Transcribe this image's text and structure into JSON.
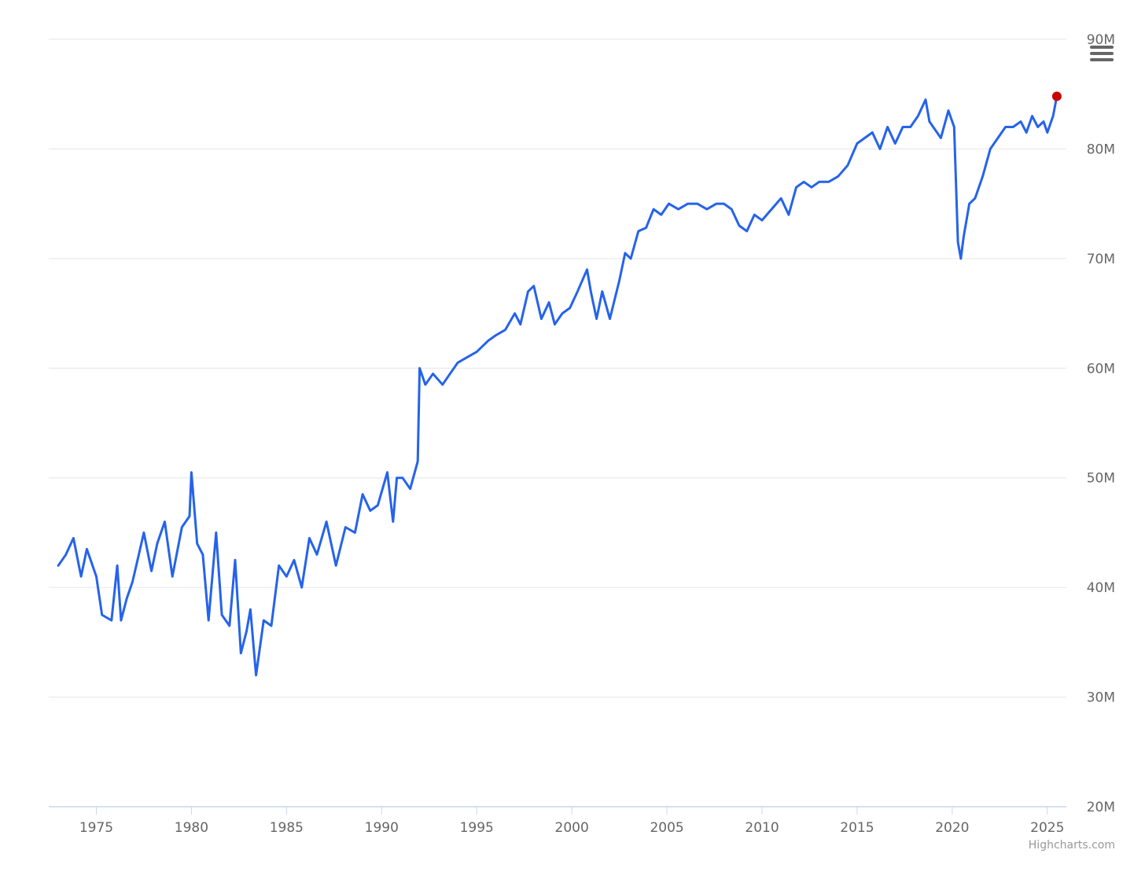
{
  "menu": {
    "icon": "hamburger-menu-icon"
  },
  "credit": "Highcharts.com",
  "colors": {
    "line": "#2563eb",
    "last_point": "#cc0000",
    "grid": "#e6e6e6",
    "axis": "#ccd6eb",
    "text": "#666666"
  },
  "chart_data": {
    "type": "line",
    "title": "",
    "xlabel": "",
    "ylabel": "",
    "xlim": [
      1972.5,
      2026
    ],
    "ylim": [
      20000000,
      90000000
    ],
    "grid": true,
    "legend": "none",
    "y_axis_side": "right",
    "x_ticks": [
      {
        "value": 1975,
        "label": "1975"
      },
      {
        "value": 1980,
        "label": "1980"
      },
      {
        "value": 1985,
        "label": "1985"
      },
      {
        "value": 1990,
        "label": "1990"
      },
      {
        "value": 1995,
        "label": "1995"
      },
      {
        "value": 2000,
        "label": "2000"
      },
      {
        "value": 2005,
        "label": "2005"
      },
      {
        "value": 2010,
        "label": "2010"
      },
      {
        "value": 2015,
        "label": "2015"
      },
      {
        "value": 2020,
        "label": "2020"
      },
      {
        "value": 2025,
        "label": "2025"
      }
    ],
    "y_ticks": [
      {
        "value": 20000000,
        "label": "20M"
      },
      {
        "value": 30000000,
        "label": "30M"
      },
      {
        "value": 40000000,
        "label": "40M"
      },
      {
        "value": 50000000,
        "label": "50M"
      },
      {
        "value": 60000000,
        "label": "60M"
      },
      {
        "value": 70000000,
        "label": "70M"
      },
      {
        "value": 80000000,
        "label": "80M"
      },
      {
        "value": 90000000,
        "label": "90M"
      }
    ],
    "series": [
      {
        "x": [
          1973.0,
          1973.4,
          1973.8,
          1974.2,
          1974.5,
          1975.0,
          1975.3,
          1975.8,
          1976.1,
          1976.3,
          1976.6,
          1976.9,
          1977.1,
          1977.5,
          1977.9,
          1978.2,
          1978.6,
          1979.0,
          1979.5,
          1979.9,
          1980.0,
          1980.3,
          1980.6,
          1980.9,
          1981.3,
          1981.6,
          1982.0,
          1982.3,
          1982.6,
          1982.9,
          1983.1,
          1983.4,
          1983.8,
          1984.2,
          1984.6,
          1985.0,
          1985.4,
          1985.8,
          1986.2,
          1986.6,
          1987.1,
          1987.6,
          1988.1,
          1988.6,
          1989.0,
          1989.4,
          1989.8,
          1990.3,
          1990.6,
          1990.8,
          1991.1,
          1991.5,
          1991.9,
          1992.0,
          1992.3,
          1992.7,
          1993.2,
          1993.6,
          1994.0,
          1994.5,
          1995.0,
          1995.6,
          1996.0,
          1996.5,
          1997.0,
          1997.3,
          1997.7,
          1998.0,
          1998.4,
          1998.8,
          1999.1,
          1999.5,
          1999.9,
          2000.3,
          2000.8,
          2001.0,
          2001.3,
          2001.6,
          2002.0,
          2002.5,
          2002.8,
          2003.1,
          2003.5,
          2003.9,
          2004.3,
          2004.7,
          2005.1,
          2005.6,
          2006.1,
          2006.6,
          2007.1,
          2007.6,
          2008.0,
          2008.4,
          2008.8,
          2009.2,
          2009.6,
          2010.0,
          2010.5,
          2011.0,
          2011.4,
          2011.8,
          2012.2,
          2012.6,
          2013.0,
          2013.5,
          2014.0,
          2014.5,
          2015.0,
          2015.4,
          2015.8,
          2016.2,
          2016.6,
          2017.0,
          2017.4,
          2017.8,
          2018.2,
          2018.6,
          2018.8,
          2019.0,
          2019.4,
          2019.8,
          2020.0,
          2020.1,
          2020.3,
          2020.45,
          2020.6,
          2020.9,
          2021.2,
          2021.6,
          2022.0,
          2022.4,
          2022.8,
          2023.2,
          2023.6,
          2023.9,
          2024.2,
          2024.5,
          2024.8,
          2025.0,
          2025.3,
          2025.5
        ],
        "values": [
          42000000,
          43000000,
          44500000,
          41000000,
          43500000,
          41000000,
          37500000,
          37000000,
          42000000,
          37000000,
          39000000,
          40500000,
          42000000,
          45000000,
          41500000,
          44000000,
          46000000,
          41000000,
          45500000,
          46500000,
          50500000,
          44000000,
          43000000,
          37000000,
          45000000,
          37500000,
          36500000,
          42500000,
          34000000,
          36000000,
          38000000,
          32000000,
          37000000,
          36500000,
          42000000,
          41000000,
          42500000,
          40000000,
          44500000,
          43000000,
          46000000,
          42000000,
          45500000,
          45000000,
          48500000,
          47000000,
          47500000,
          50500000,
          46000000,
          50000000,
          50000000,
          49000000,
          51500000,
          60000000,
          58500000,
          59500000,
          58500000,
          59500000,
          60500000,
          61000000,
          61500000,
          62500000,
          63000000,
          63500000,
          65000000,
          64000000,
          67000000,
          67500000,
          64500000,
          66000000,
          64000000,
          65000000,
          65500000,
          67000000,
          69000000,
          67000000,
          64500000,
          67000000,
          64500000,
          68000000,
          70500000,
          70000000,
          72500000,
          72800000,
          74500000,
          74000000,
          75000000,
          74500000,
          75000000,
          75000000,
          74500000,
          75000000,
          75000000,
          74500000,
          73000000,
          72500000,
          74000000,
          73500000,
          74500000,
          75500000,
          74000000,
          76500000,
          77000000,
          76500000,
          77000000,
          77000000,
          77500000,
          78500000,
          80500000,
          81000000,
          81500000,
          80000000,
          82000000,
          80500000,
          82000000,
          82000000,
          83000000,
          84500000,
          82500000,
          82000000,
          81000000,
          83500000,
          82500000,
          82000000,
          71500000,
          70000000,
          72000000,
          75000000,
          75500000,
          77500000,
          80000000,
          81000000,
          82000000,
          82000000,
          82500000,
          81500000,
          83000000,
          82000000,
          82500000,
          81500000,
          83000000,
          84800000
        ]
      }
    ],
    "last_point": {
      "x": 2025.5,
      "value": 84800000
    }
  }
}
